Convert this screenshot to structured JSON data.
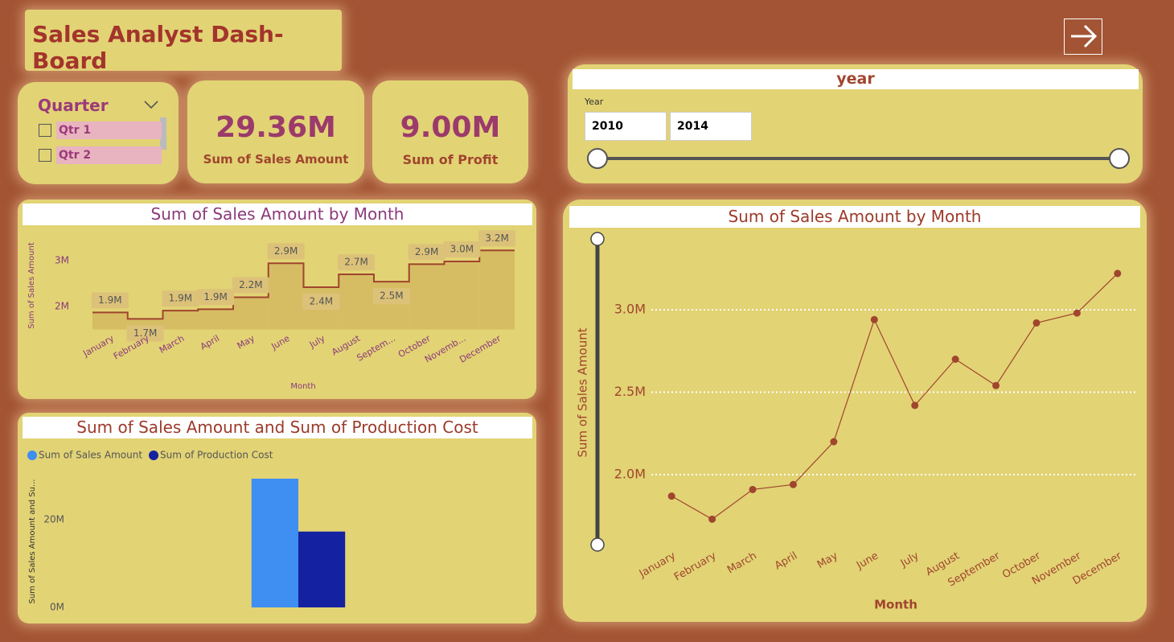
{
  "header": {
    "title": "Sales Analyst Dash- Board"
  },
  "quarter_slicer": {
    "title": "Quarter",
    "items": [
      "Qtr 1",
      "Qtr 2"
    ]
  },
  "cards": [
    {
      "value": "29.36M",
      "label": "Sum of Sales Amount"
    },
    {
      "value": "9.00M",
      "label": "Sum of Profit"
    }
  ],
  "year_slicer": {
    "title": "year",
    "label": "Year",
    "start": "2010",
    "end": "2014"
  },
  "chart_data": [
    {
      "type": "area",
      "step": true,
      "title": "Sum of Sales Amount by Month",
      "x_label": "Month",
      "y_label": "Sum of Sales Amount",
      "categories": [
        "January",
        "February",
        "March",
        "April",
        "May",
        "June",
        "July",
        "August",
        "Septem...",
        "October",
        "Novemb...",
        "December"
      ],
      "values": [
        1870000,
        1730000,
        1910000,
        1940000,
        2200000,
        2940000,
        2420000,
        2700000,
        2540000,
        2920000,
        2980000,
        3220000
      ],
      "value_labels": [
        "1.9M",
        "1.7M",
        "1.9M",
        "1.9M",
        "2.2M",
        "2.9M",
        "2.4M",
        "2.7M",
        "2.5M",
        "2.9M",
        "3.0M",
        "3.2M"
      ],
      "color": "#a0452e",
      "fill": "#d4b862",
      "ylim": [
        1500000,
        3400000
      ],
      "yticks": [
        {
          "value": 2000000,
          "label": "2M"
        },
        {
          "value": 3000000,
          "label": "3M"
        }
      ],
      "grid": false
    },
    {
      "type": "bar",
      "title": "Sum of Sales Amount and Sum of Production Cost",
      "y_label": "Sum of Sales Amount and Su...",
      "categories": [
        null
      ],
      "series": [
        {
          "name": "Sum of Sales Amount",
          "color": "#3f8ef2",
          "values": [
            29360000
          ]
        },
        {
          "name": "Sum of Production Cost",
          "color": "#1421a0",
          "values": [
            17300000
          ]
        }
      ],
      "ylim": [
        0,
        30000000
      ],
      "yticks": [
        {
          "value": 0,
          "label": "0M"
        },
        {
          "value": 20000000,
          "label": "20M"
        }
      ],
      "grid": false
    },
    {
      "type": "line",
      "title": "Sum of Sales Amount by Month",
      "x_label": "Month",
      "y_label": "Sum of Sales Amount",
      "categories": [
        "January",
        "February",
        "March",
        "April",
        "May",
        "June",
        "July",
        "August",
        "September",
        "October",
        "November",
        "December"
      ],
      "values": [
        1870000,
        1730000,
        1910000,
        1940000,
        2200000,
        2940000,
        2420000,
        2700000,
        2540000,
        2920000,
        2980000,
        3220000
      ],
      "color": "#a0452e",
      "ylim": [
        1600000,
        3400000
      ],
      "yticks": [
        {
          "value": 2000000,
          "label": "2.0M"
        },
        {
          "value": 2500000,
          "label": "2.5M"
        },
        {
          "value": 3000000,
          "label": "3.0M"
        }
      ],
      "grid": true
    }
  ]
}
